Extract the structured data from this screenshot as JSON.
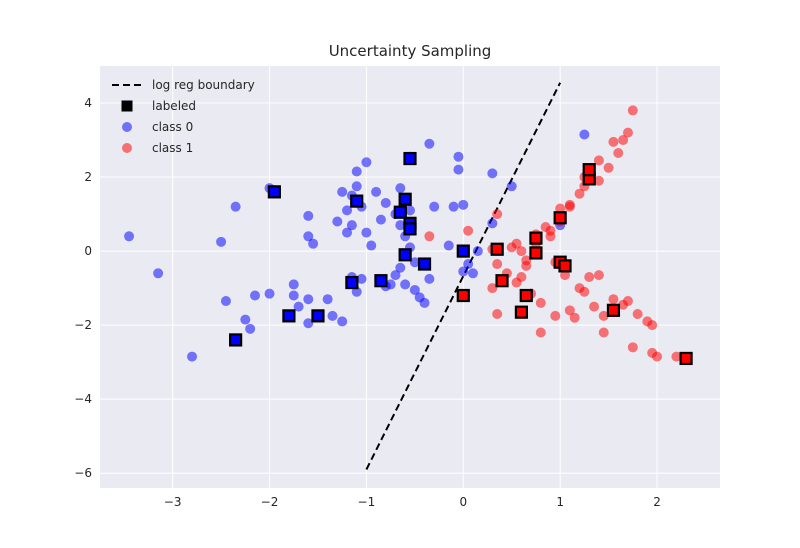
{
  "chart_data": {
    "type": "scatter",
    "title": "Uncertainty Sampling",
    "xlabel": "",
    "ylabel": "",
    "xlim": [
      -3.75,
      2.65
    ],
    "ylim": [
      -6.4,
      5.0
    ],
    "xticks": [
      -3,
      -2,
      -1,
      0,
      1,
      2
    ],
    "yticks": [
      -6,
      -4,
      -2,
      0,
      2,
      4
    ],
    "grid": true,
    "legend_position": "top-left",
    "colors": {
      "plot_bg": "#eaeaf2",
      "grid": "#ffffff",
      "class0": "#0000ff",
      "class1": "#ff0000",
      "labeled": "#000000",
      "boundary": "#000000"
    },
    "legend": [
      {
        "label": "log reg boundary",
        "kind": "line"
      },
      {
        "label": "labeled",
        "kind": "square"
      },
      {
        "label": "class 0",
        "kind": "class0"
      },
      {
        "label": "class 1",
        "kind": "class1"
      }
    ],
    "boundary": {
      "name": "log reg boundary",
      "points": [
        [
          -1.0,
          -5.9
        ],
        [
          1.0,
          4.55
        ]
      ]
    },
    "series": [
      {
        "name": "class 0",
        "color": "#0000ff",
        "points": [
          [
            -3.45,
            0.4
          ],
          [
            -3.15,
            -0.6
          ],
          [
            -2.8,
            -2.85
          ],
          [
            -2.5,
            0.25
          ],
          [
            -2.45,
            -1.35
          ],
          [
            -2.35,
            1.2
          ],
          [
            -2.25,
            -1.85
          ],
          [
            -2.2,
            -2.1
          ],
          [
            -2.15,
            -1.2
          ],
          [
            -2.0,
            -1.15
          ],
          [
            -2.0,
            1.7
          ],
          [
            -1.95,
            1.65
          ],
          [
            -1.75,
            -0.9
          ],
          [
            -1.75,
            -1.2
          ],
          [
            -1.7,
            -1.5
          ],
          [
            -1.6,
            -1.3
          ],
          [
            -1.6,
            -1.95
          ],
          [
            -1.6,
            0.95
          ],
          [
            -1.6,
            0.4
          ],
          [
            -1.55,
            0.2
          ],
          [
            -1.4,
            -1.3
          ],
          [
            -1.35,
            -1.75
          ],
          [
            -1.3,
            0.8
          ],
          [
            -1.25,
            1.6
          ],
          [
            -1.25,
            -1.9
          ],
          [
            -1.2,
            1.1
          ],
          [
            -1.2,
            0.5
          ],
          [
            -1.15,
            0.7
          ],
          [
            -1.15,
            1.5
          ],
          [
            -1.15,
            -0.7
          ],
          [
            -1.1,
            2.15
          ],
          [
            -1.1,
            1.75
          ],
          [
            -1.1,
            -1.1
          ],
          [
            -1.05,
            -0.75
          ],
          [
            -1.05,
            1.2
          ],
          [
            -1.0,
            0.5
          ],
          [
            -1.0,
            2.4
          ],
          [
            -0.95,
            0.15
          ],
          [
            -0.9,
            1.6
          ],
          [
            -0.85,
            -0.8
          ],
          [
            -0.85,
            0.85
          ],
          [
            -0.8,
            1.3
          ],
          [
            -0.8,
            -0.95
          ],
          [
            -0.75,
            -0.9
          ],
          [
            -0.7,
            1.0
          ],
          [
            -0.7,
            -0.65
          ],
          [
            -0.65,
            1.7
          ],
          [
            -0.65,
            0.7
          ],
          [
            -0.65,
            -0.45
          ],
          [
            -0.6,
            0.4
          ],
          [
            -0.6,
            -0.9
          ],
          [
            -0.55,
            0.1
          ],
          [
            -0.55,
            2.55
          ],
          [
            -0.55,
            1.1
          ],
          [
            -0.5,
            -0.3
          ],
          [
            -0.5,
            -1.05
          ],
          [
            -0.45,
            -1.25
          ],
          [
            -0.4,
            -1.4
          ],
          [
            -0.35,
            -0.75
          ],
          [
            -0.35,
            2.9
          ],
          [
            -0.3,
            1.2
          ],
          [
            -0.15,
            0.15
          ],
          [
            -0.1,
            1.2
          ],
          [
            -0.05,
            2.55
          ],
          [
            -0.05,
            2.2
          ],
          [
            0.0,
            1.25
          ],
          [
            0.0,
            -0.55
          ],
          [
            0.05,
            -0.35
          ],
          [
            0.1,
            -0.6
          ],
          [
            0.15,
            0.0
          ],
          [
            0.3,
            2.1
          ],
          [
            0.3,
            0.75
          ],
          [
            0.5,
            1.75
          ],
          [
            1.0,
            0.7
          ],
          [
            1.25,
            3.15
          ]
        ]
      },
      {
        "name": "class 1",
        "color": "#ff0000",
        "points": [
          [
            -0.35,
            0.4
          ],
          [
            0.05,
            0.55
          ],
          [
            0.3,
            -1.0
          ],
          [
            0.35,
            -1.7
          ],
          [
            0.35,
            1.0
          ],
          [
            0.35,
            -0.35
          ],
          [
            0.45,
            -0.6
          ],
          [
            0.5,
            0.1
          ],
          [
            0.55,
            0.2
          ],
          [
            0.55,
            -0.85
          ],
          [
            0.6,
            -0.7
          ],
          [
            0.6,
            0.0
          ],
          [
            0.65,
            -0.4
          ],
          [
            0.65,
            -0.25
          ],
          [
            0.7,
            -1.15
          ],
          [
            0.75,
            0.45
          ],
          [
            0.75,
            0.2
          ],
          [
            0.8,
            -1.4
          ],
          [
            0.8,
            -2.2
          ],
          [
            0.85,
            0.65
          ],
          [
            0.9,
            0.4
          ],
          [
            0.95,
            -0.3
          ],
          [
            0.95,
            -1.75
          ],
          [
            1.0,
            0.8
          ],
          [
            1.0,
            1.15
          ],
          [
            1.05,
            -0.65
          ],
          [
            1.1,
            1.25
          ],
          [
            1.1,
            -1.6
          ],
          [
            1.15,
            -1.8
          ],
          [
            1.2,
            1.55
          ],
          [
            1.2,
            -1.0
          ],
          [
            1.25,
            2.0
          ],
          [
            1.25,
            1.75
          ],
          [
            1.25,
            -1.1
          ],
          [
            1.3,
            -0.7
          ],
          [
            1.35,
            -1.5
          ],
          [
            1.4,
            2.45
          ],
          [
            1.4,
            1.9
          ],
          [
            1.4,
            -0.65
          ],
          [
            1.45,
            -1.75
          ],
          [
            1.45,
            -2.2
          ],
          [
            1.5,
            2.25
          ],
          [
            1.55,
            2.95
          ],
          [
            1.55,
            -1.3
          ],
          [
            1.6,
            2.65
          ],
          [
            1.65,
            -1.45
          ],
          [
            1.65,
            3.0
          ],
          [
            1.7,
            3.2
          ],
          [
            1.7,
            -1.35
          ],
          [
            1.75,
            3.8
          ],
          [
            1.75,
            -2.6
          ],
          [
            1.8,
            -1.7
          ],
          [
            1.9,
            -1.9
          ],
          [
            1.95,
            -2.0
          ],
          [
            1.95,
            -2.75
          ],
          [
            2.0,
            -2.85
          ],
          [
            2.2,
            -2.85
          ],
          [
            0.3,
            0.05
          ],
          [
            1.1,
            1.2
          ],
          [
            0.9,
            0.55
          ]
        ]
      },
      {
        "name": "labeled",
        "color": "#000000",
        "points": [
          [
            -2.35,
            -2.4
          ],
          [
            -1.95,
            1.6
          ],
          [
            -1.8,
            -1.75
          ],
          [
            -1.5,
            -1.75
          ],
          [
            -1.15,
            -0.85
          ],
          [
            -1.1,
            1.35
          ],
          [
            -0.85,
            -0.8
          ],
          [
            -0.65,
            1.05
          ],
          [
            -0.6,
            -0.1
          ],
          [
            -0.6,
            1.4
          ],
          [
            -0.55,
            0.75
          ],
          [
            -0.55,
            0.6
          ],
          [
            -0.55,
            2.5
          ],
          [
            -0.4,
            -0.35
          ],
          [
            0.0,
            -1.2
          ],
          [
            0.0,
            0.0
          ],
          [
            0.35,
            0.05
          ],
          [
            0.4,
            -0.8
          ],
          [
            0.6,
            -1.65
          ],
          [
            0.65,
            -1.2
          ],
          [
            0.75,
            -0.05
          ],
          [
            0.75,
            0.35
          ],
          [
            1.0,
            -0.3
          ],
          [
            1.0,
            0.9
          ],
          [
            1.05,
            -0.4
          ],
          [
            1.3,
            1.95
          ],
          [
            1.3,
            2.2
          ],
          [
            1.55,
            -1.6
          ],
          [
            2.3,
            -2.9
          ]
        ]
      }
    ]
  }
}
